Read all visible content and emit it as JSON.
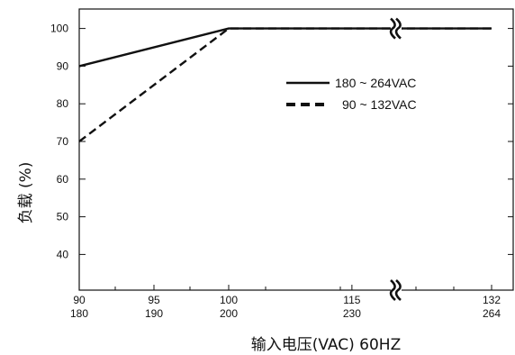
{
  "chart_data": {
    "type": "line",
    "title": "",
    "xlabel": "输入电压(VAC) 60HZ",
    "ylabel": "负载 (%)",
    "ylim": [
      32,
      105
    ],
    "y_ticks": [
      40,
      50,
      60,
      70,
      80,
      90,
      100
    ],
    "x_ticks": [
      {
        "pos": 90,
        "top": "90",
        "bottom": "180"
      },
      {
        "pos": 95,
        "top": "95",
        "bottom": "190"
      },
      {
        "pos": 100,
        "top": "100",
        "bottom": "200"
      },
      {
        "pos": 115,
        "top": "115",
        "bottom": "230"
      },
      {
        "pos": 132,
        "top": "132",
        "bottom": "264"
      }
    ],
    "x_axis_break": true,
    "series": [
      {
        "name": "180 ~ 264VAC",
        "style": "solid",
        "x": [
          90,
          100,
          132
        ],
        "y": [
          90,
          100,
          100
        ]
      },
      {
        "name": "90 ~ 132VAC",
        "style": "dashed",
        "x": [
          90,
          100,
          132
        ],
        "y": [
          70,
          100,
          100
        ]
      }
    ],
    "legend": "upper-right",
    "grid": false
  }
}
